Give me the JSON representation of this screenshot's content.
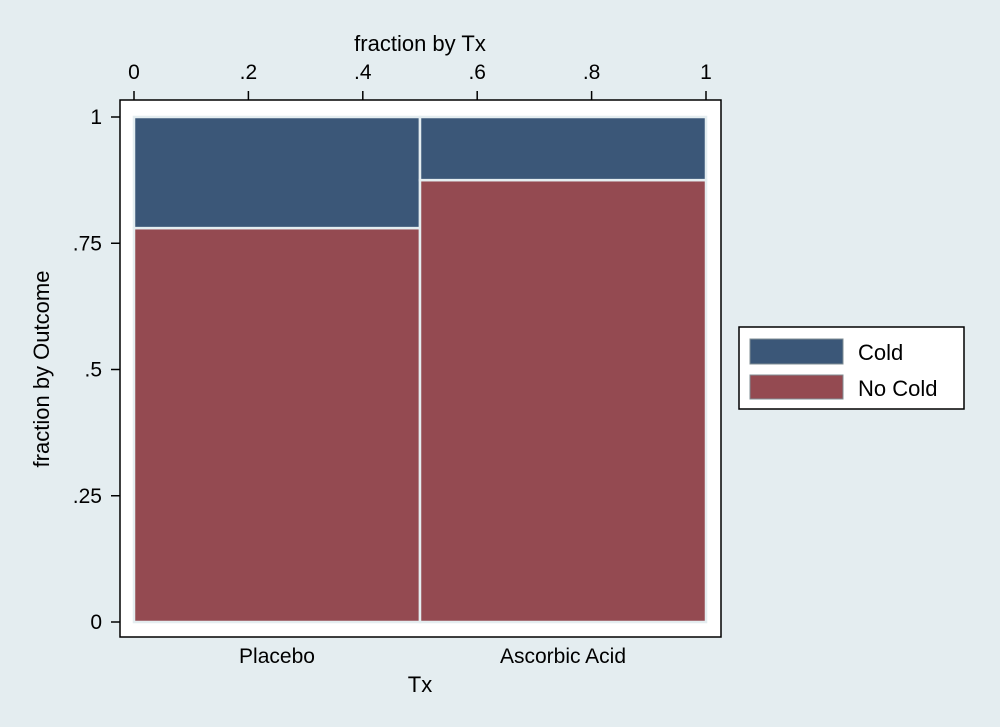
{
  "chart_data": {
    "type": "mosaic",
    "title": "",
    "xlabel": "Tx",
    "x2label": "fraction by Tx",
    "ylabel": "fraction by Outcome",
    "categories": [
      "Placebo",
      "Ascorbic Acid"
    ],
    "x_fractions": [
      0.5,
      0.5
    ],
    "x2_ticks": [
      "0",
      ".2",
      ".4",
      ".6",
      ".8",
      "1"
    ],
    "x2_tick_values": [
      0,
      0.2,
      0.4,
      0.6,
      0.8,
      1
    ],
    "y_ticks": [
      "0",
      ".25",
      ".5",
      ".75",
      "1"
    ],
    "y_tick_values": [
      0,
      0.25,
      0.5,
      0.75,
      1
    ],
    "xlim": [
      0,
      1
    ],
    "ylim": [
      0,
      1
    ],
    "series": [
      {
        "name": "No Cold",
        "values": [
          0.78,
          0.875
        ],
        "color": "#944a51"
      },
      {
        "name": "Cold",
        "values": [
          0.22,
          0.125
        ],
        "color": "#3b5778"
      }
    ],
    "legend": {
      "placement": "right",
      "items": [
        {
          "label": "Cold",
          "color": "#3b5778"
        },
        {
          "label": "No Cold",
          "color": "#944a51"
        }
      ]
    },
    "colors": {
      "background": "#e4edf0",
      "plot_background": "#ffffff",
      "cell_border": "#e4edf0"
    },
    "grid": false
  }
}
